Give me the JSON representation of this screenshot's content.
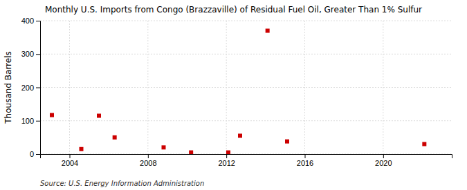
{
  "chart_data": {
    "type": "scatter",
    "title": "Monthly U.S. Imports from Congo (Brazzaville) of Residual Fuel Oil, Greater Than 1% Sulfur",
    "ylabel": "Thousand Barrels",
    "source": "Source: U.S. Energy Information Administration",
    "x": [
      2003.1,
      2004.6,
      2005.5,
      2006.3,
      2008.8,
      2010.2,
      2012.1,
      2012.7,
      2014.1,
      2015.1,
      2022.1
    ],
    "values": [
      117,
      15,
      115,
      50,
      20,
      5,
      5,
      55,
      370,
      38,
      30
    ],
    "color": "#cc0000",
    "marker": "square",
    "xlim": [
      2002.5,
      2023.5
    ],
    "xticks": [
      2004,
      2008,
      2012,
      2016,
      2020
    ],
    "ylim": [
      0,
      400
    ],
    "yticks": [
      0,
      100,
      200,
      300,
      400
    ],
    "grid": true
  }
}
